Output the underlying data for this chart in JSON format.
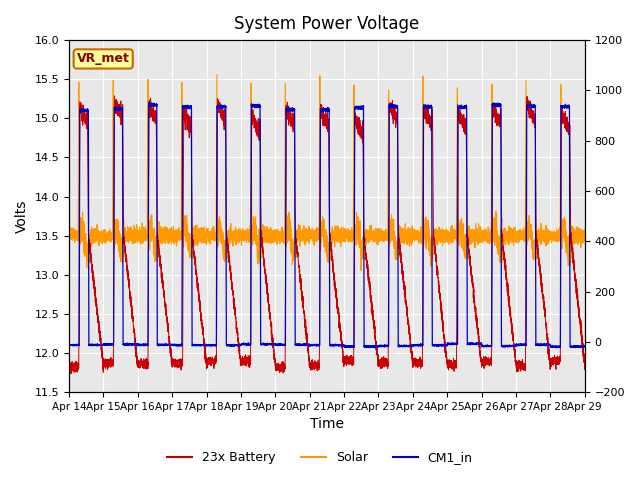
{
  "title": "System Power Voltage",
  "xlabel": "Time",
  "ylabel_left": "Volts",
  "ylim_left": [
    11.5,
    16.0
  ],
  "ylim_right": [
    -200,
    1200
  ],
  "xtick_labels": [
    "Apr 14",
    "Apr 15",
    "Apr 16",
    "Apr 17",
    "Apr 18",
    "Apr 19",
    "Apr 20",
    "Apr 21",
    "Apr 22",
    "Apr 23",
    "Apr 24",
    "Apr 25",
    "Apr 26",
    "Apr 27",
    "Apr 28",
    "Apr 29"
  ],
  "yticks_left": [
    11.5,
    12.0,
    12.5,
    13.0,
    13.5,
    14.0,
    14.5,
    15.0,
    15.5,
    16.0
  ],
  "yticks_right": [
    -200,
    0,
    200,
    400,
    600,
    800,
    1000,
    1200
  ],
  "color_battery": "#cc0000",
  "color_solar": "#ff9900",
  "color_cm1": "#0000cc",
  "legend_labels": [
    "23x Battery",
    "Solar",
    "CM1_in"
  ],
  "annotation_text": "VR_met",
  "background_color": "#e8e8e8",
  "title_fontsize": 12,
  "n_days": 15,
  "pts_per_day": 480
}
